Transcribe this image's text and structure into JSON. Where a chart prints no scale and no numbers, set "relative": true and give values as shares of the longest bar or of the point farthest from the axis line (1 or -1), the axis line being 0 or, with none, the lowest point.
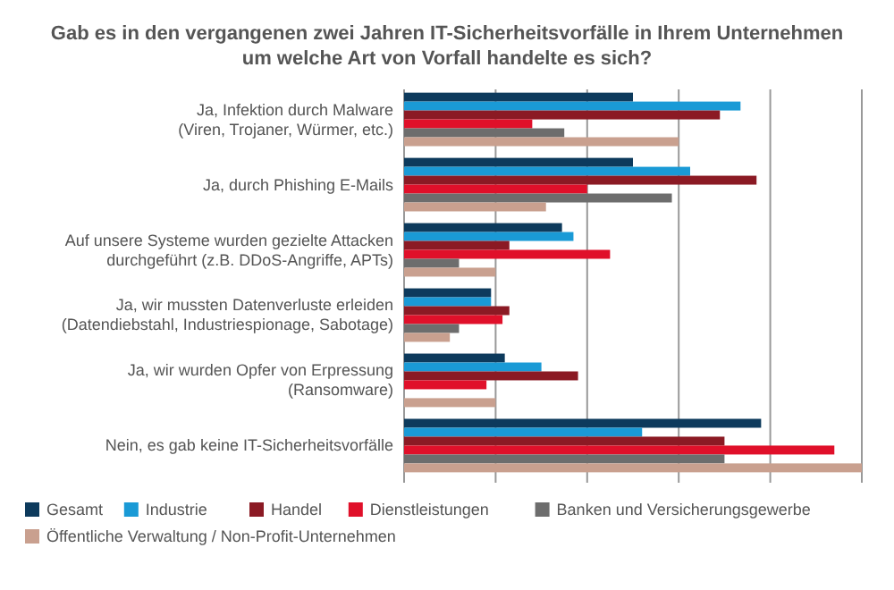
{
  "chart_data": {
    "type": "bar",
    "orientation": "horizontal",
    "relative": true,
    "grid": true,
    "legend": "bottom",
    "title": "Gab es in den vergangenen zwei Jahren IT-Sicherheitsvorfälle in Ihrem Unternehmen\num welche Art von Vorfall handelte es sich?",
    "categories": [
      "Ja, Infektion durch Malware\n(Viren, Trojaner, Würmer, etc.)",
      "Ja, durch Phishing E-Mails",
      "Auf unsere Systeme wurden gezielte Attacken\ndurchgeführt (z.B. DDoS-Angriffe, APTs)",
      "Ja, wir mussten Datenverluste erleiden\n(Datendiebstahl, Industriespionage, Sabotage)",
      "Ja, wir wurden Opfer von Erpressung\n(Ransomware)",
      "Nein, es gab keine IT-Sicherheitsvorfälle"
    ],
    "series": [
      {
        "name": "Gesamt",
        "color": "#0d3a5c",
        "values": [
          0.5,
          0.5,
          0.345,
          0.19,
          0.22,
          0.78
        ]
      },
      {
        "name": "Industrie",
        "color": "#1a9ad6",
        "values": [
          0.735,
          0.625,
          0.37,
          0.19,
          0.3,
          0.52
        ]
      },
      {
        "name": "Handel",
        "color": "#8b1a24",
        "values": [
          0.69,
          0.77,
          0.23,
          0.23,
          0.38,
          0.7
        ]
      },
      {
        "name": "Dienstleistungen",
        "color": "#e0102a",
        "values": [
          0.28,
          0.4,
          0.45,
          0.215,
          0.18,
          0.94
        ]
      },
      {
        "name": "Banken und Versicherungsgewerbe",
        "color": "#6d6d6d",
        "values": [
          0.35,
          0.585,
          0.12,
          0.12,
          null,
          0.7
        ]
      },
      {
        "name": "Öffentliche Verwaltung / Non-Profit-Unternehmen",
        "color": "#c9a08f",
        "values": [
          0.6,
          0.31,
          0.2,
          0.1,
          0.2,
          1
        ]
      }
    ]
  }
}
